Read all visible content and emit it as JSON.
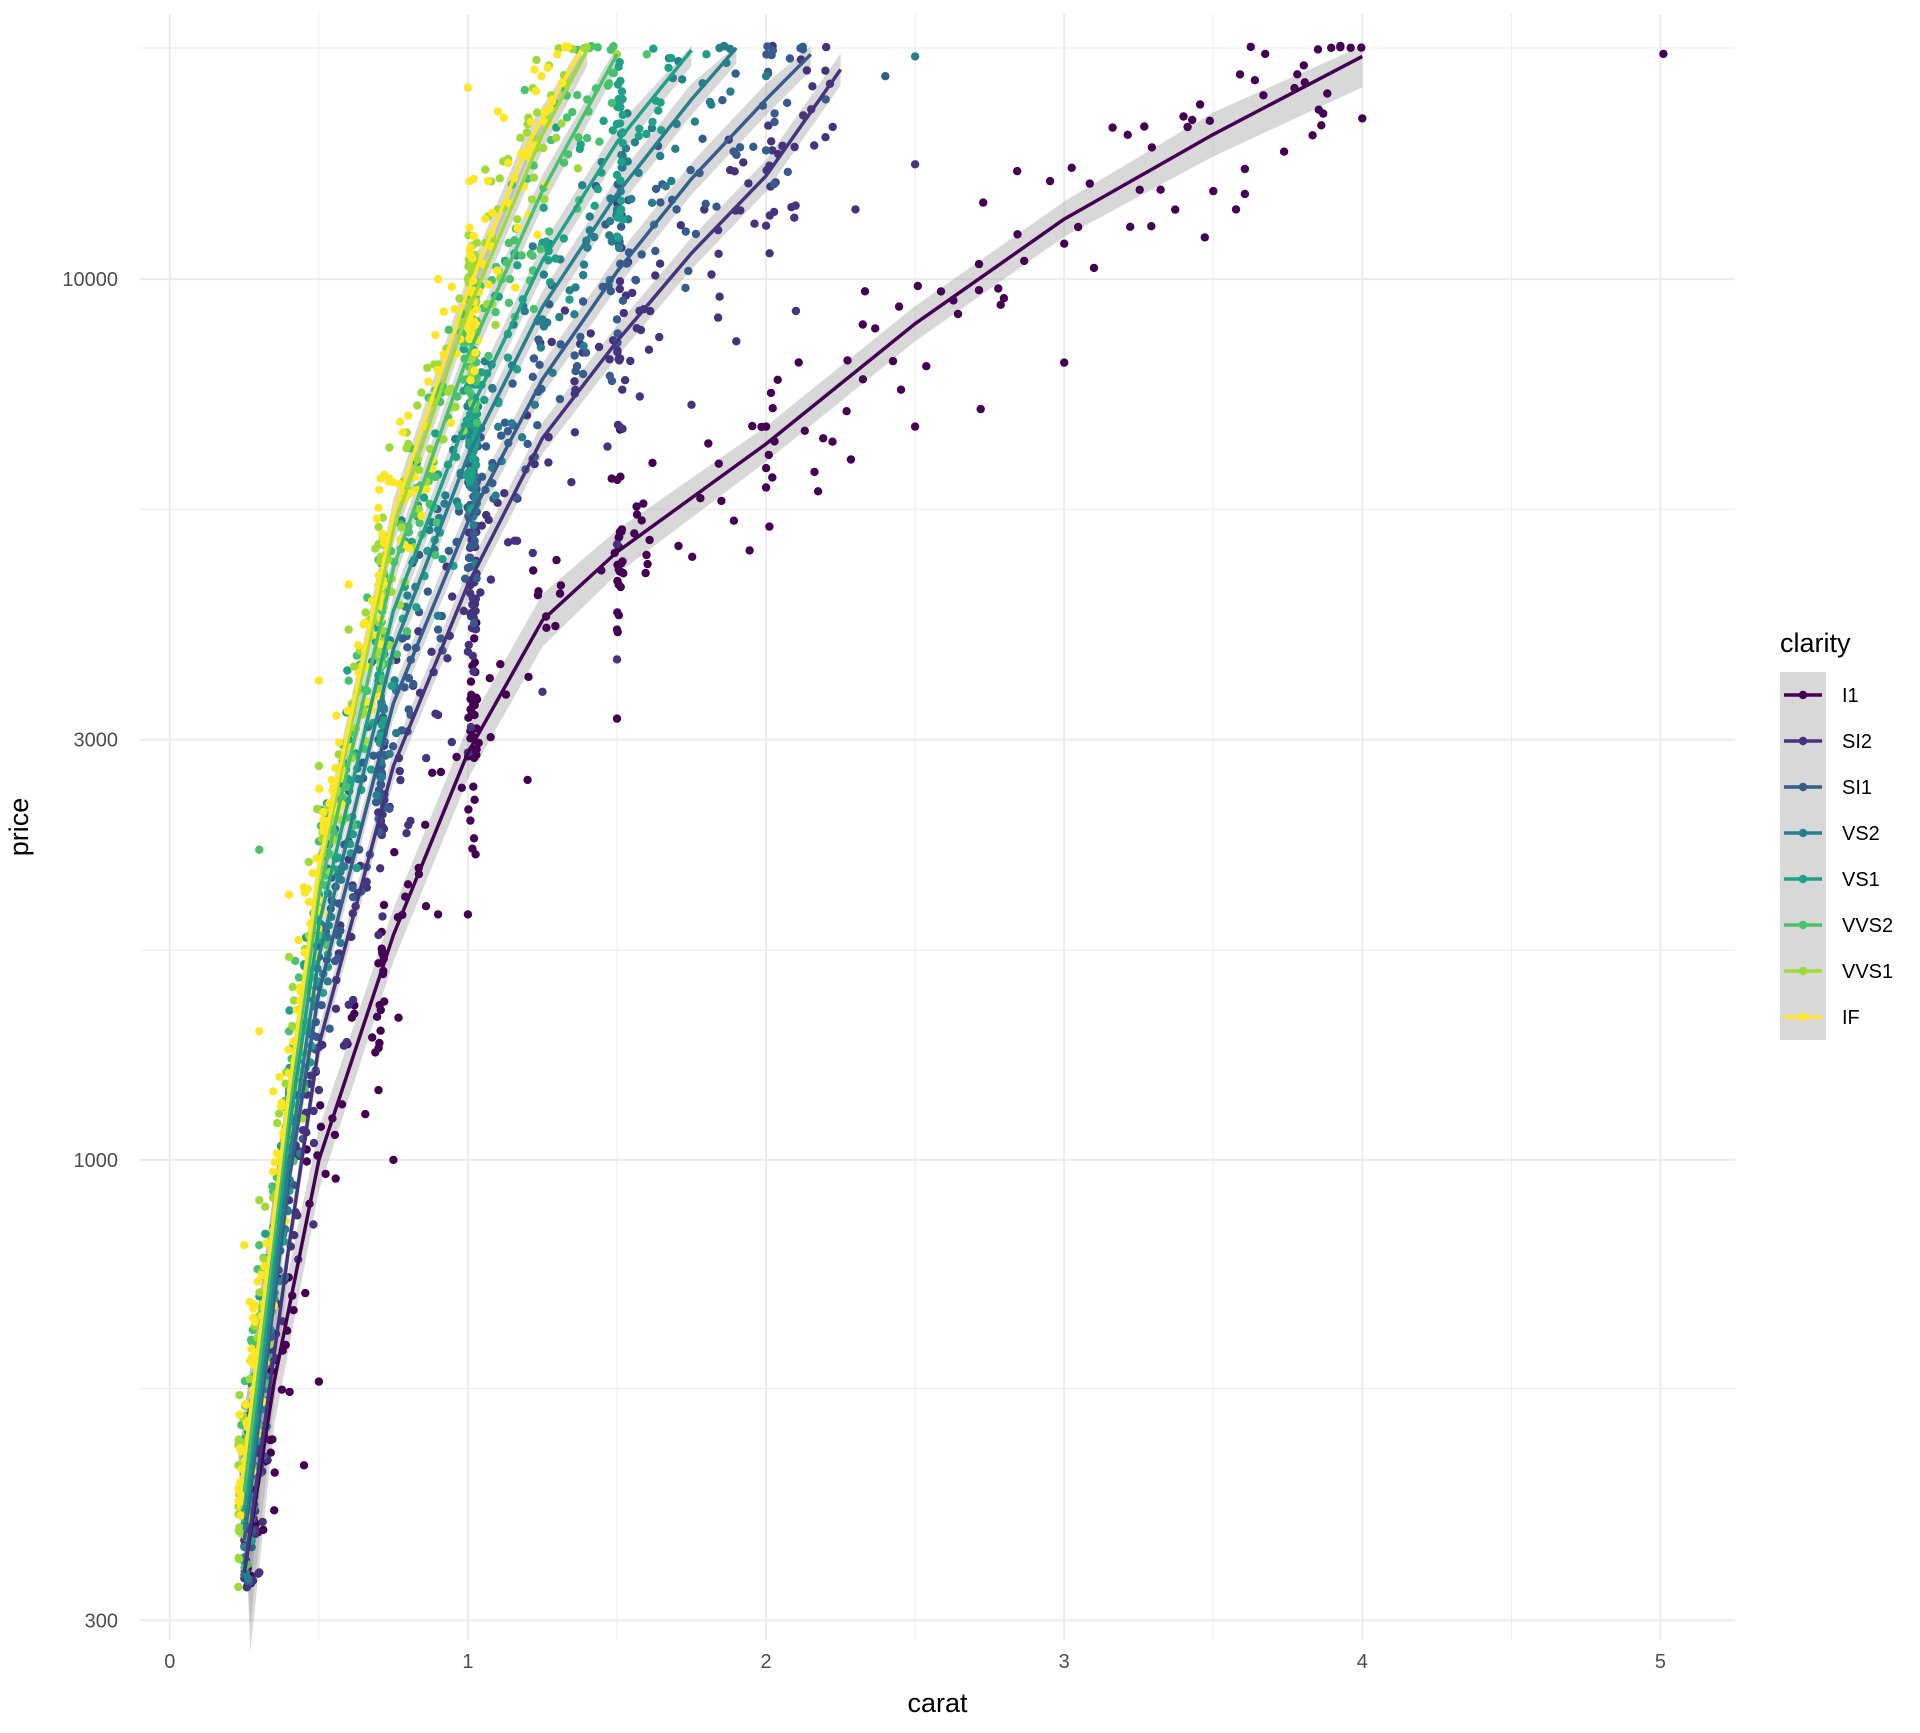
{
  "chart_data": {
    "type": "scatter",
    "title": "",
    "xlabel": "carat",
    "ylabel": "price",
    "x_scale": "linear",
    "y_scale": "log10",
    "xlim": [
      0,
      5.2
    ],
    "ylim": [
      300,
      18500
    ],
    "x_ticks": [
      0,
      1,
      2,
      3,
      4,
      5
    ],
    "x_tick_labels": [
      "0",
      "1",
      "2",
      "3",
      "4",
      "5"
    ],
    "y_ticks": [
      300,
      1000,
      3000,
      10000
    ],
    "y_tick_labels": [
      "300",
      "1000",
      "3000",
      "10000"
    ],
    "grid": true,
    "theme": "minimal",
    "legend": {
      "title": "clarity",
      "position": "right",
      "entries": [
        "I1",
        "SI2",
        "SI1",
        "VS2",
        "VS1",
        "VVS2",
        "VVS1",
        "IF"
      ]
    },
    "series": [
      {
        "name": "I1",
        "color": "#440154",
        "smooth": [
          [
            0.25,
            340
          ],
          [
            0.35,
            560
          ],
          [
            0.5,
            1000
          ],
          [
            0.75,
            1800
          ],
          [
            1.0,
            2900
          ],
          [
            1.25,
            4100
          ],
          [
            1.5,
            4900
          ],
          [
            2.0,
            6500
          ],
          [
            2.5,
            8900
          ],
          [
            3.0,
            11700
          ],
          [
            3.5,
            14600
          ],
          [
            4.0,
            17900
          ]
        ],
        "ribbon_halfwidth_log": [
          0.09,
          0.05,
          0.035,
          0.03,
          0.03,
          0.03,
          0.025,
          0.02,
          0.02,
          0.02,
          0.025,
          0.035
        ],
        "points": [
          [
            5.01,
            18018
          ],
          [
            4.0,
            15223
          ],
          [
            3.5,
            12587
          ],
          [
            3.4,
            15300
          ],
          [
            3.0,
            10970
          ],
          [
            3.0,
            8040
          ],
          [
            2.72,
            7120
          ],
          [
            2.5,
            6800
          ],
          [
            2.27,
            7080
          ],
          [
            2.0,
            5800
          ],
          [
            2.0,
            6800
          ],
          [
            1.85,
            5600
          ],
          [
            1.5,
            3170
          ],
          [
            1.5,
            4000
          ],
          [
            1.2,
            2700
          ],
          [
            1.0,
            1900
          ],
          [
            0.9,
            1900
          ],
          [
            0.75,
            1000
          ],
          [
            0.7,
            1200
          ],
          [
            0.5,
            560
          ],
          [
            0.45,
            450
          ],
          [
            0.35,
            400
          ]
        ]
      },
      {
        "name": "SI2",
        "color": "#46337e",
        "smooth": [
          [
            0.25,
            340
          ],
          [
            0.4,
            800
          ],
          [
            0.5,
            1350
          ],
          [
            0.75,
            2800
          ],
          [
            1.0,
            4500
          ],
          [
            1.25,
            6600
          ],
          [
            1.5,
            8500
          ],
          [
            1.75,
            10700
          ],
          [
            2.0,
            13100
          ],
          [
            2.25,
            17300
          ]
        ],
        "points": [
          [
            2.5,
            13500
          ],
          [
            2.3,
            12000
          ],
          [
            2.1,
            9200
          ],
          [
            2.0,
            11500
          ],
          [
            1.9,
            8500
          ],
          [
            1.75,
            7200
          ],
          [
            1.5,
            5000
          ],
          [
            1.5,
            3700
          ],
          [
            1.25,
            3400
          ],
          [
            1.01,
            3100
          ],
          [
            1.0,
            2900
          ],
          [
            0.9,
            3200
          ],
          [
            0.8,
            2400
          ],
          [
            0.7,
            1800
          ],
          [
            0.6,
            1500
          ],
          [
            0.5,
            1200
          ],
          [
            0.4,
            900
          ],
          [
            0.3,
            500
          ],
          [
            0.25,
            370
          ],
          [
            0.3,
            340
          ]
        ]
      },
      {
        "name": "SI1",
        "color": "#365c8d",
        "smooth": [
          [
            0.25,
            370
          ],
          [
            0.4,
            950
          ],
          [
            0.5,
            1550
          ],
          [
            0.75,
            3300
          ],
          [
            1.0,
            5300
          ],
          [
            1.25,
            7700
          ],
          [
            1.5,
            10200
          ],
          [
            1.75,
            13000
          ],
          [
            2.0,
            16000
          ],
          [
            2.15,
            18000
          ]
        ],
        "points": [
          [
            2.4,
            17000
          ],
          [
            2.2,
            16000
          ],
          [
            2.0,
            14000
          ],
          [
            1.7,
            12000
          ],
          [
            1.5,
            9000
          ],
          [
            1.2,
            6500
          ],
          [
            1.0,
            4700
          ],
          [
            0.9,
            4000
          ],
          [
            0.7,
            3000
          ],
          [
            0.6,
            2300
          ],
          [
            0.5,
            1700
          ],
          [
            0.4,
            1000
          ],
          [
            0.3,
            600
          ],
          [
            0.28,
            450
          ]
        ]
      },
      {
        "name": "VS2",
        "color": "#277f8e",
        "smooth": [
          [
            0.25,
            380
          ],
          [
            0.4,
            1000
          ],
          [
            0.5,
            1700
          ],
          [
            0.75,
            3800
          ],
          [
            1.0,
            6300
          ],
          [
            1.25,
            9300
          ],
          [
            1.5,
            12500
          ],
          [
            1.75,
            16000
          ],
          [
            1.9,
            18300
          ]
        ],
        "points": [
          [
            2.5,
            17900
          ],
          [
            2.0,
            17000
          ],
          [
            1.7,
            15000
          ],
          [
            1.5,
            12000
          ],
          [
            1.25,
            9000
          ],
          [
            1.0,
            6800
          ],
          [
            0.9,
            5200
          ],
          [
            0.7,
            3500
          ],
          [
            0.6,
            2700
          ],
          [
            0.5,
            1800
          ],
          [
            0.4,
            1100
          ],
          [
            0.3,
            650
          ],
          [
            0.25,
            400
          ]
        ]
      },
      {
        "name": "VS1",
        "color": "#1fa187",
        "smooth": [
          [
            0.25,
            400
          ],
          [
            0.4,
            1080
          ],
          [
            0.5,
            1850
          ],
          [
            0.75,
            4200
          ],
          [
            1.0,
            7000
          ],
          [
            1.25,
            10500
          ],
          [
            1.5,
            14300
          ],
          [
            1.75,
            18200
          ]
        ],
        "points": [
          [
            1.8,
            18000
          ],
          [
            1.5,
            15000
          ],
          [
            1.25,
            11000
          ],
          [
            1.0,
            7500
          ],
          [
            0.9,
            6000
          ],
          [
            0.7,
            4000
          ],
          [
            0.6,
            3000
          ],
          [
            0.5,
            2000
          ],
          [
            0.4,
            1200
          ],
          [
            0.3,
            700
          ],
          [
            0.25,
            420
          ]
        ]
      },
      {
        "name": "VVS2",
        "color": "#4ac16d",
        "smooth": [
          [
            0.25,
            420
          ],
          [
            0.4,
            1150
          ],
          [
            0.5,
            2000
          ],
          [
            0.75,
            4700
          ],
          [
            1.0,
            8200
          ],
          [
            1.25,
            12600
          ],
          [
            1.5,
            18000
          ]
        ],
        "points": [
          [
            1.6,
            18000
          ],
          [
            1.4,
            16000
          ],
          [
            1.2,
            13000
          ],
          [
            1.0,
            9500
          ],
          [
            0.9,
            7500
          ],
          [
            0.7,
            4800
          ],
          [
            0.6,
            3500
          ],
          [
            0.5,
            2300
          ],
          [
            0.4,
            1400
          ],
          [
            0.3,
            2250
          ],
          [
            0.3,
            800
          ],
          [
            0.24,
            500
          ]
        ]
      },
      {
        "name": "VVS1",
        "color": "#a0da39",
        "smooth": [
          [
            0.23,
            400
          ],
          [
            0.4,
            1200
          ],
          [
            0.5,
            2100
          ],
          [
            0.75,
            5200
          ],
          [
            1.0,
            9200
          ],
          [
            1.25,
            14600
          ],
          [
            1.4,
            18200
          ]
        ],
        "points": [
          [
            1.5,
            18000
          ],
          [
            1.2,
            15000
          ],
          [
            1.1,
            12000
          ],
          [
            1.0,
            10000
          ],
          [
            0.9,
            8000
          ],
          [
            0.8,
            6500
          ],
          [
            0.7,
            5000
          ],
          [
            0.6,
            4000
          ],
          [
            0.5,
            2800
          ],
          [
            0.4,
            1700
          ],
          [
            0.3,
            900
          ],
          [
            0.23,
            450
          ]
        ]
      },
      {
        "name": "IF",
        "color": "#fde725",
        "smooth": [
          [
            0.23,
            400
          ],
          [
            0.4,
            1200
          ],
          [
            0.5,
            2150
          ],
          [
            0.75,
            5400
          ],
          [
            1.0,
            9700
          ],
          [
            1.2,
            14200
          ],
          [
            1.38,
            18200
          ]
        ],
        "points": [
          [
            1.3,
            18000
          ],
          [
            1.1,
            15500
          ],
          [
            1.0,
            16500
          ],
          [
            0.9,
            10000
          ],
          [
            0.8,
            7000
          ],
          [
            0.7,
            5500
          ],
          [
            0.6,
            4500
          ],
          [
            0.5,
            3500
          ],
          [
            0.4,
            2000
          ],
          [
            0.3,
            1400
          ],
          [
            0.25,
            800
          ]
        ]
      }
    ]
  }
}
